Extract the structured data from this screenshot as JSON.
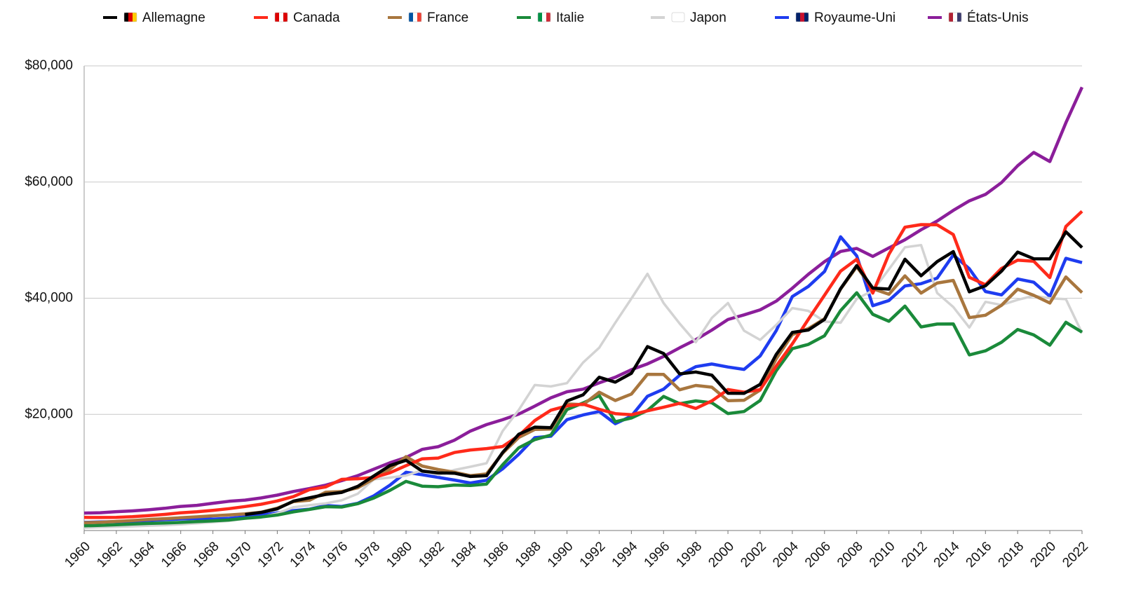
{
  "chart_data": {
    "type": "line",
    "x": [
      1960,
      1961,
      1962,
      1963,
      1964,
      1965,
      1966,
      1967,
      1968,
      1969,
      1970,
      1971,
      1972,
      1973,
      1974,
      1975,
      1976,
      1977,
      1978,
      1979,
      1980,
      1981,
      1982,
      1983,
      1984,
      1985,
      1986,
      1987,
      1988,
      1989,
      1990,
      1991,
      1992,
      1993,
      1994,
      1995,
      1996,
      1997,
      1998,
      1999,
      2000,
      2001,
      2002,
      2003,
      2004,
      2005,
      2006,
      2007,
      2008,
      2009,
      2010,
      2011,
      2012,
      2013,
      2014,
      2015,
      2016,
      2017,
      2018,
      2019,
      2020,
      2021,
      2022
    ],
    "xlim": [
      1960,
      2022
    ],
    "xticks": [
      1960,
      1962,
      1964,
      1966,
      1968,
      1970,
      1972,
      1974,
      1976,
      1978,
      1980,
      1982,
      1984,
      1986,
      1988,
      1990,
      1992,
      1994,
      1996,
      1998,
      2000,
      2002,
      2004,
      2006,
      2008,
      2010,
      2012,
      2014,
      2016,
      2018,
      2020,
      2022
    ],
    "ylim": [
      0,
      80000
    ],
    "yticks": [
      {
        "value": 20000,
        "label": "$20,000"
      },
      {
        "value": 40000,
        "label": "$40,000"
      },
      {
        "value": 60000,
        "label": "$60,000"
      },
      {
        "value": 80000,
        "label": "$80,000"
      }
    ],
    "grid": true,
    "legend": "top",
    "series": [
      {
        "name": "Allemagne",
        "color": "#000000",
        "values": [
          null,
          null,
          null,
          null,
          null,
          null,
          null,
          null,
          null,
          null,
          2761,
          3118,
          3742,
          5051,
          5629,
          6218,
          6569,
          7607,
          9398,
          11181,
          12092,
          10226,
          9934,
          9868,
          9300,
          9435,
          13422,
          16562,
          17796,
          17709,
          22304,
          23357,
          26395,
          25541,
          27073,
          31658,
          30480,
          26965,
          27289,
          26749,
          23636,
          23608,
          25155,
          30310,
          34107,
          34520,
          36354,
          41640,
          45613,
          41733,
          41572,
          46706,
          43856,
          46299,
          48024,
          41103,
          42136,
          44653,
          47940,
          46794,
          46773,
          51426,
          48718
        ]
      },
      {
        "name": "Canada",
        "color": "#ff2a1a",
        "values": [
          2259,
          2240,
          2269,
          2374,
          2555,
          2770,
          3047,
          3217,
          3463,
          3764,
          4122,
          4520,
          5089,
          5838,
          7033,
          7511,
          8809,
          8919,
          9124,
          9939,
          11170,
          12338,
          12482,
          13426,
          13868,
          14102,
          14472,
          16311,
          18937,
          20716,
          21448,
          21768,
          20880,
          20121,
          19935,
          20614,
          21228,
          21901,
          21024,
          22316,
          24271,
          23822,
          24255,
          28300,
          32143,
          36383,
          40504,
          44659,
          46711,
          40876,
          47562,
          52224,
          52670,
          52635,
          50956,
          43596,
          42316,
          45129,
          46549,
          46374,
          43562,
          52359,
          54966
        ]
      },
      {
        "name": "France",
        "color": "#a8763e",
        "values": [
          1334,
          1428,
          1566,
          1729,
          1899,
          2034,
          2192,
          2348,
          2537,
          2685,
          2858,
          3150,
          3850,
          4977,
          5216,
          6587,
          6709,
          7349,
          8901,
          10567,
          12713,
          11105,
          10496,
          10034,
          9445,
          9754,
          13294,
          16017,
          17401,
          17473,
          21794,
          21675,
          23814,
          22380,
          23497,
          26890,
          26871,
          24229,
          24975,
          24674,
          22364,
          22434,
          24177,
          29568,
          33741,
          34760,
          36470,
          41575,
          45413,
          41631,
          40676,
          43847,
          40875,
          42603,
          43069,
          36653,
          37063,
          38781,
          41557,
          40494,
          39169,
          43659,
          40964
        ]
      },
      {
        "name": "Italie",
        "color": "#1a8a3a",
        "values": [
          804,
          887,
          990,
          1126,
          1222,
          1304,
          1402,
          1533,
          1651,
          1813,
          2112,
          2325,
          2671,
          3206,
          3629,
          4104,
          4044,
          4616,
          5599,
          6913,
          8457,
          7640,
          7546,
          7832,
          7755,
          8005,
          11308,
          14240,
          15653,
          16430,
          20826,
          21962,
          23244,
          18731,
          19375,
          20665,
          23082,
          21829,
          22318,
          21998,
          20139,
          20487,
          22381,
          27498,
          31313,
          32045,
          33535,
          37867,
          40945,
          37227,
          36036,
          38650,
          35053,
          35550,
          35566,
          30243,
          30939,
          32406,
          34623,
          33674,
          31919,
          35851,
          34158
        ]
      },
      {
        "name": "Japon",
        "color": "#d3d3d3",
        "values": [
          475,
          564,
          633,
          718,
          835,
          919,
          1059,
          1229,
          1451,
          1669,
          2037,
          2272,
          2967,
          3997,
          4354,
          4659,
          5198,
          6335,
          8821,
          9105,
          9463,
          10361,
          9578,
          10425,
          10984,
          11585,
          17112,
          20745,
          25051,
          24813,
          25371,
          28925,
          31465,
          35766,
          39934,
          44198,
          39150,
          35635,
          32424,
          36610,
          39169,
          34406,
          32821,
          35387,
          38299,
          37813,
          35991,
          35779,
          39876,
          41309,
          44968,
          48760,
          49145,
          40898,
          38475,
          34961,
          39375,
          38834,
          39727,
          40416,
          39987,
          39827,
          34017
        ]
      },
      {
        "name": "Royaume-Uni",
        "color": "#1e3cf0",
        "values": [
          1398,
          1472,
          1525,
          1613,
          1748,
          1873,
          1986,
          2058,
          1951,
          2101,
          2348,
          2650,
          3030,
          3426,
          3666,
          4300,
          4139,
          4682,
          5976,
          7805,
          10032,
          9599,
          9146,
          8691,
          8180,
          8652,
          10611,
          13119,
          15987,
          16239,
          19095,
          19901,
          20488,
          18389,
          19710,
          23123,
          24332,
          26734,
          28214,
          28669,
          28150,
          27744,
          30057,
          34419,
          40290,
          42030,
          44599,
          50566,
          47287,
          38713,
          39599,
          42110,
          42498,
          43450,
          47440,
          45071,
          41146,
          40572,
          43306,
          42747,
          40318,
          46870,
          46125
        ]
      },
      {
        "name": "États-Unis",
        "color": "#8b1e9a",
        "values": [
          3007,
          3067,
          3244,
          3375,
          3574,
          3828,
          4146,
          4336,
          4696,
          5032,
          5234,
          5609,
          6094,
          6726,
          7226,
          7801,
          8592,
          9453,
          10565,
          11674,
          12575,
          13976,
          14434,
          15544,
          17121,
          18237,
          19071,
          20039,
          21417,
          22857,
          23889,
          24342,
          25419,
          26387,
          27695,
          28691,
          29968,
          31459,
          32854,
          34515,
          36330,
          37134,
          37998,
          39490,
          41725,
          44123,
          46302,
          48050,
          48570,
          47195,
          48651,
          50066,
          51784,
          53291,
          55124,
          56763,
          57867,
          59915,
          62805,
          65095,
          63528,
          70220,
          76330
        ]
      }
    ]
  }
}
